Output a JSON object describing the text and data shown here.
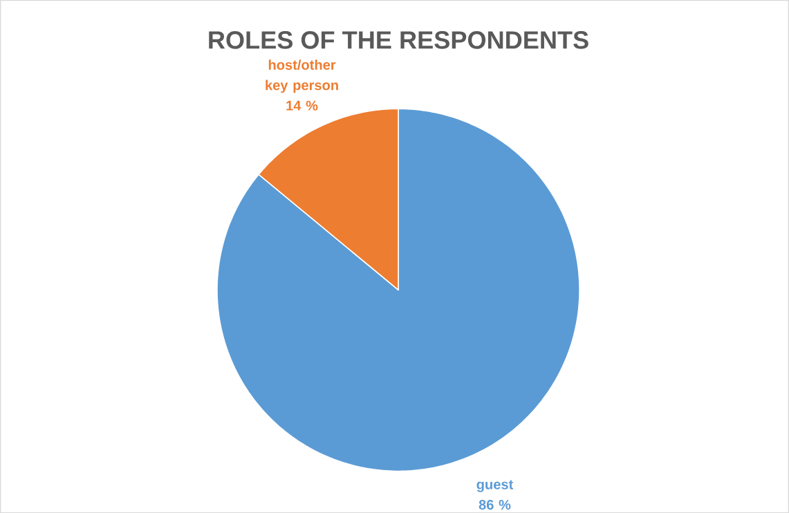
{
  "chart_data": {
    "type": "pie",
    "title": "ROLES OF THE RESPONDENTS",
    "categories": [
      "guest",
      "host/other key person"
    ],
    "values": [
      86,
      14
    ],
    "colors": [
      "#5b9bd5",
      "#ed7d31"
    ],
    "value_labels": [
      "86 %",
      "14 %"
    ]
  }
}
